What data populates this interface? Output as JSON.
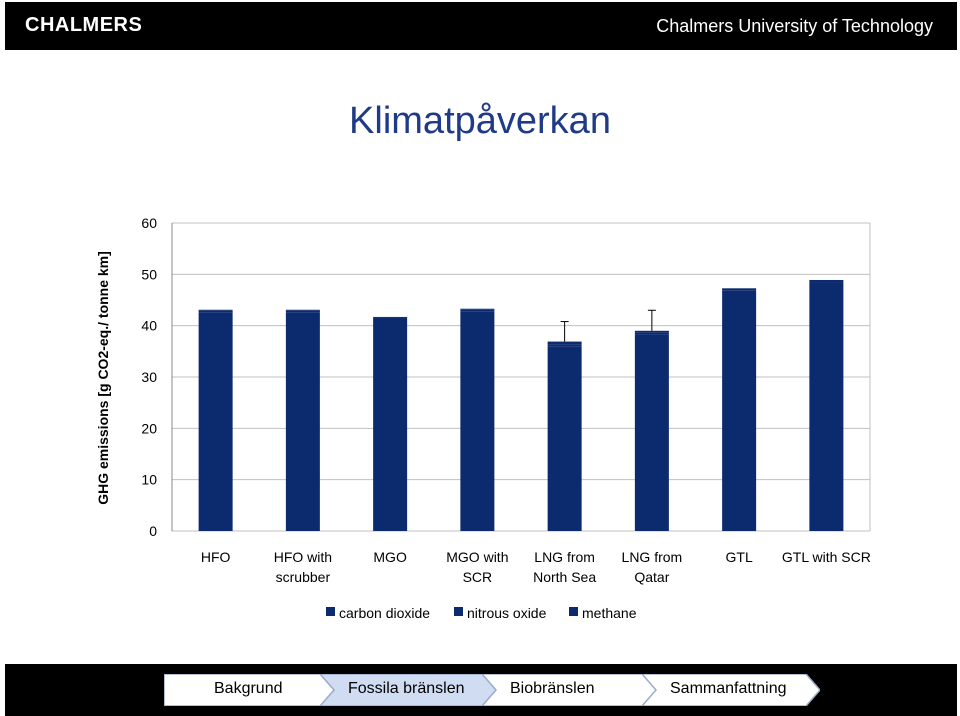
{
  "header": {
    "logo": "CHALMERS",
    "university": "Chalmers University of Technology"
  },
  "slide": {
    "title": "Klimatpåverkan"
  },
  "chart_data": {
    "type": "bar",
    "categories": [
      [
        "HFO"
      ],
      [
        "HFO with",
        "scrubber"
      ],
      [
        "MGO"
      ],
      [
        "MGO with",
        "SCR"
      ],
      [
        "LNG from",
        "North Sea"
      ],
      [
        "LNG  from",
        "Qatar"
      ],
      [
        "GTL"
      ],
      [
        "GTL with SCR"
      ]
    ],
    "series": [
      {
        "name": "carbon dioxide",
        "values": [
          42.6,
          42.6,
          41.2,
          42.8,
          36.0,
          38.3,
          46.8,
          48.4
        ]
      },
      {
        "name": "nitrous oxide",
        "values": [
          0.4,
          0.4,
          0.4,
          0.4,
          0.4,
          0.4,
          0.4,
          0.4
        ]
      },
      {
        "name": "methane",
        "values": [
          0.1,
          0.1,
          0.1,
          0.1,
          0.5,
          0.3,
          0.1,
          0.1
        ]
      }
    ],
    "error_bars": [
      null,
      null,
      null,
      null,
      40.8,
      43.0,
      null,
      null
    ],
    "ylabel": "GHG emissions [g CO2-eq./ tonne km]",
    "ylim": [
      0,
      60
    ],
    "yticks": [
      0,
      10,
      20,
      30,
      40,
      50,
      60
    ],
    "grid": true,
    "legend": "bottom",
    "colors": {
      "bar": "#0c2a6e",
      "grid": "#c0c0c0"
    }
  },
  "nav": {
    "items": [
      {
        "label": "Bakgrund",
        "active": false
      },
      {
        "label": "Fossila bränslen",
        "active": true
      },
      {
        "label": "Biobränslen",
        "active": false
      },
      {
        "label": "Sammanfattning",
        "active": false
      }
    ]
  }
}
